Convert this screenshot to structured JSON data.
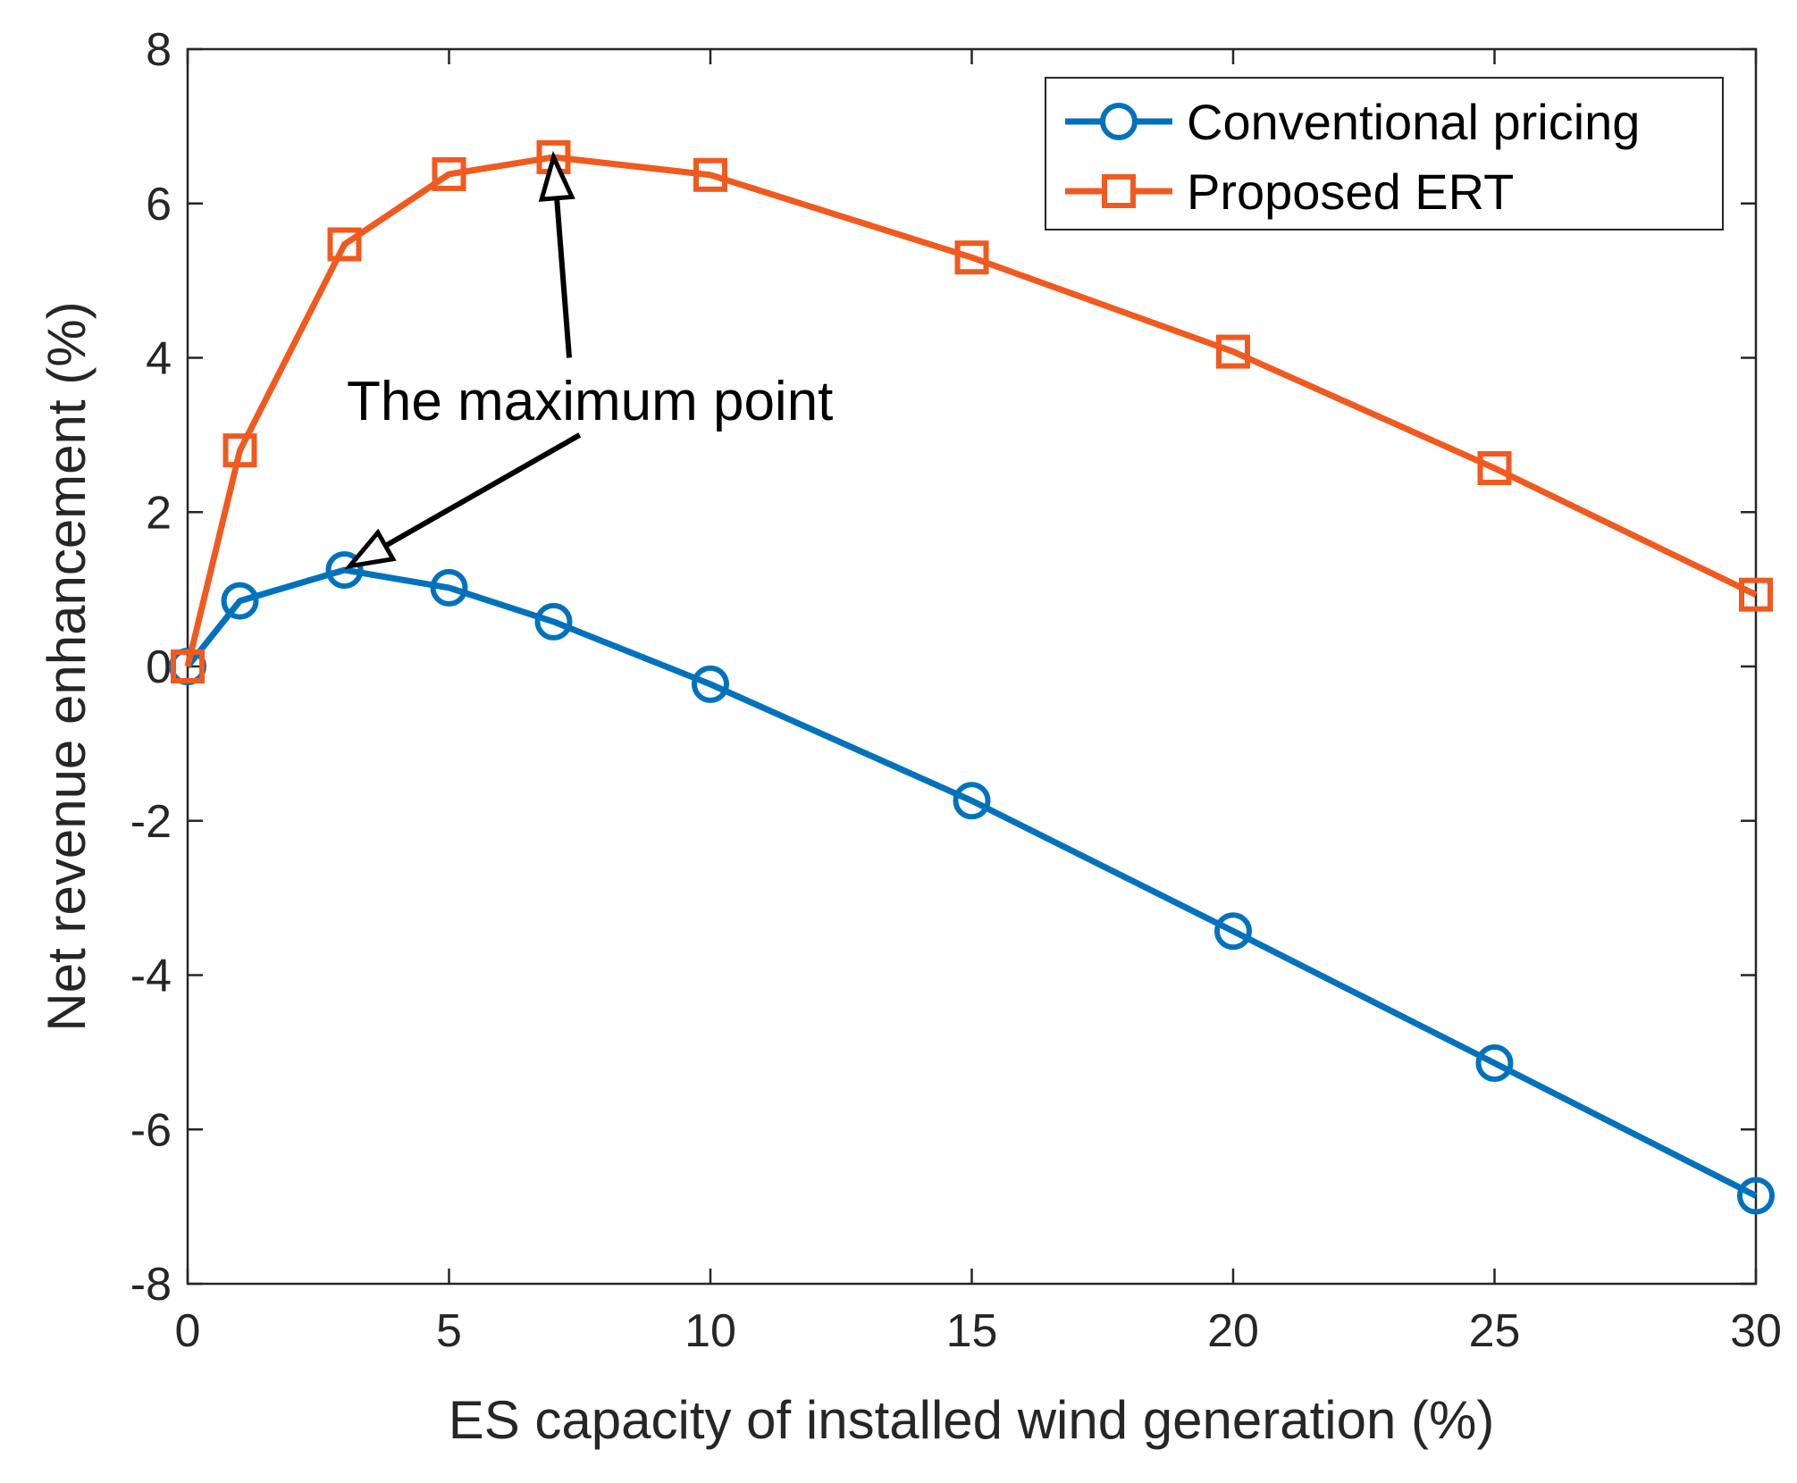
{
  "chart_data": {
    "type": "line",
    "xlabel": "ES capacity of installed wind generation (%)",
    "ylabel": "Net revenue enhancement (%)",
    "xlim": [
      0,
      30
    ],
    "ylim": [
      -8,
      8
    ],
    "x_ticks": [
      0,
      5,
      10,
      15,
      20,
      25,
      30
    ],
    "y_ticks": [
      -8,
      -6,
      -4,
      -2,
      0,
      2,
      4,
      6,
      8
    ],
    "x_tick_labels": [
      "0",
      "5",
      "10",
      "15",
      "20",
      "25",
      "30"
    ],
    "y_tick_labels": [
      "-8",
      "-6",
      "-4",
      "-2",
      "0",
      "2",
      "4",
      "6",
      "8"
    ],
    "grid": false,
    "legend_position": "top-right",
    "series": [
      {
        "name": "Conventional pricing",
        "color": "#0072BD",
        "marker": "circle",
        "x": [
          0,
          1,
          3,
          5,
          7,
          10,
          15,
          20,
          25,
          30
        ],
        "y": [
          0,
          0.85,
          1.25,
          1.02,
          0.58,
          -0.23,
          -1.74,
          -3.43,
          -5.14,
          -6.86
        ]
      },
      {
        "name": "Proposed ERT",
        "color": "#F05A1E",
        "marker": "square",
        "x": [
          0,
          1,
          3,
          5,
          7,
          10,
          15,
          20,
          25,
          30
        ],
        "y": [
          0,
          2.8,
          5.47,
          6.38,
          6.6,
          6.37,
          5.3,
          4.08,
          2.57,
          0.93
        ]
      }
    ],
    "annotations": [
      {
        "text": "The maximum point",
        "arrows": [
          {
            "from": [
              7.3,
              4.0
            ],
            "to": [
              7.0,
              6.6
            ]
          },
          {
            "from": [
              7.5,
              3.0
            ],
            "to": [
              3.1,
              1.3
            ]
          }
        ]
      }
    ]
  }
}
